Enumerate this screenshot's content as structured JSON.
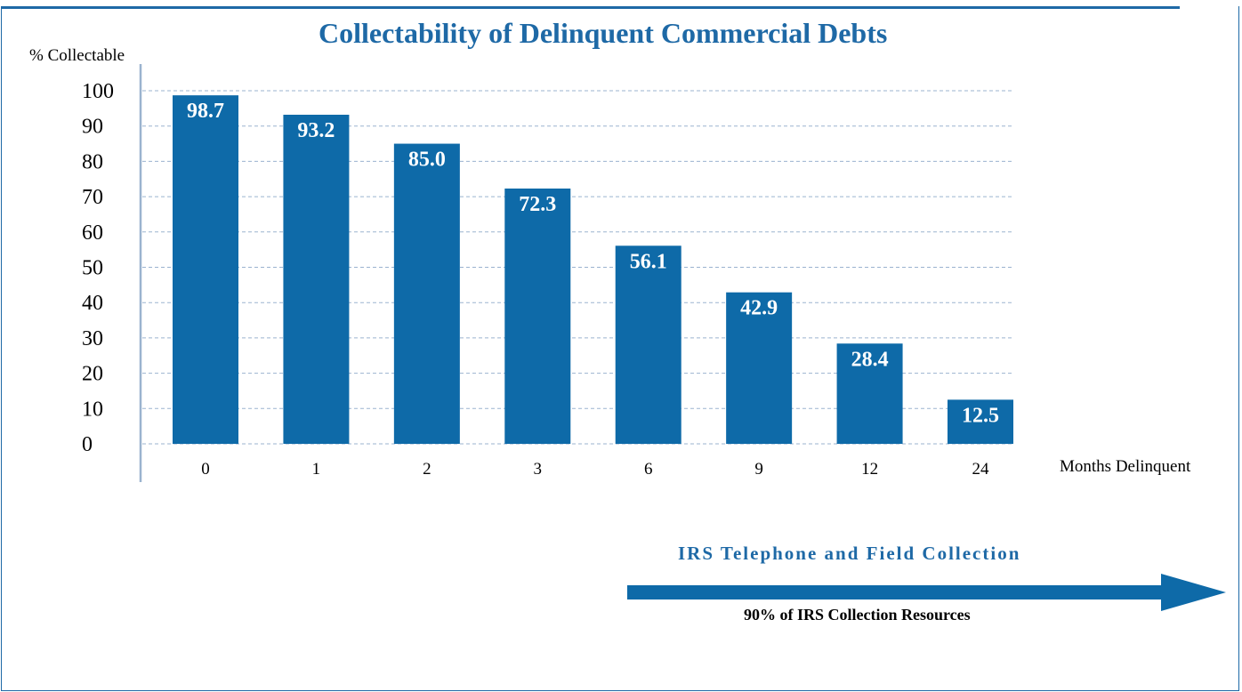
{
  "chart_data": {
    "type": "bar",
    "title": "Collectability of Delinquent Commercial Debts",
    "ylabel": "% Collectable",
    "xlabel": "Months Delinquent",
    "categories": [
      "0",
      "1",
      "2",
      "3",
      "6",
      "9",
      "12",
      "24"
    ],
    "values": [
      98.7,
      93.2,
      85.0,
      72.3,
      56.1,
      42.9,
      28.4,
      12.5
    ],
    "value_labels": [
      "98.7",
      "93.2",
      "85.0",
      "72.3",
      "56.1",
      "42.9",
      "28.4",
      "12.5"
    ],
    "yticks": [
      "0",
      "10",
      "20",
      "30",
      "40",
      "50",
      "60",
      "70",
      "80",
      "90",
      "100"
    ],
    "ylim": [
      0,
      100
    ],
    "grid": "horizontal dashed",
    "bar_color": "#0e6aa8"
  },
  "annotation": {
    "arrow_title": "IRS Telephone and Field Collection",
    "arrow_subtitle": "90% of IRS Collection Resources",
    "arrow_color": "#0e6aa8"
  }
}
